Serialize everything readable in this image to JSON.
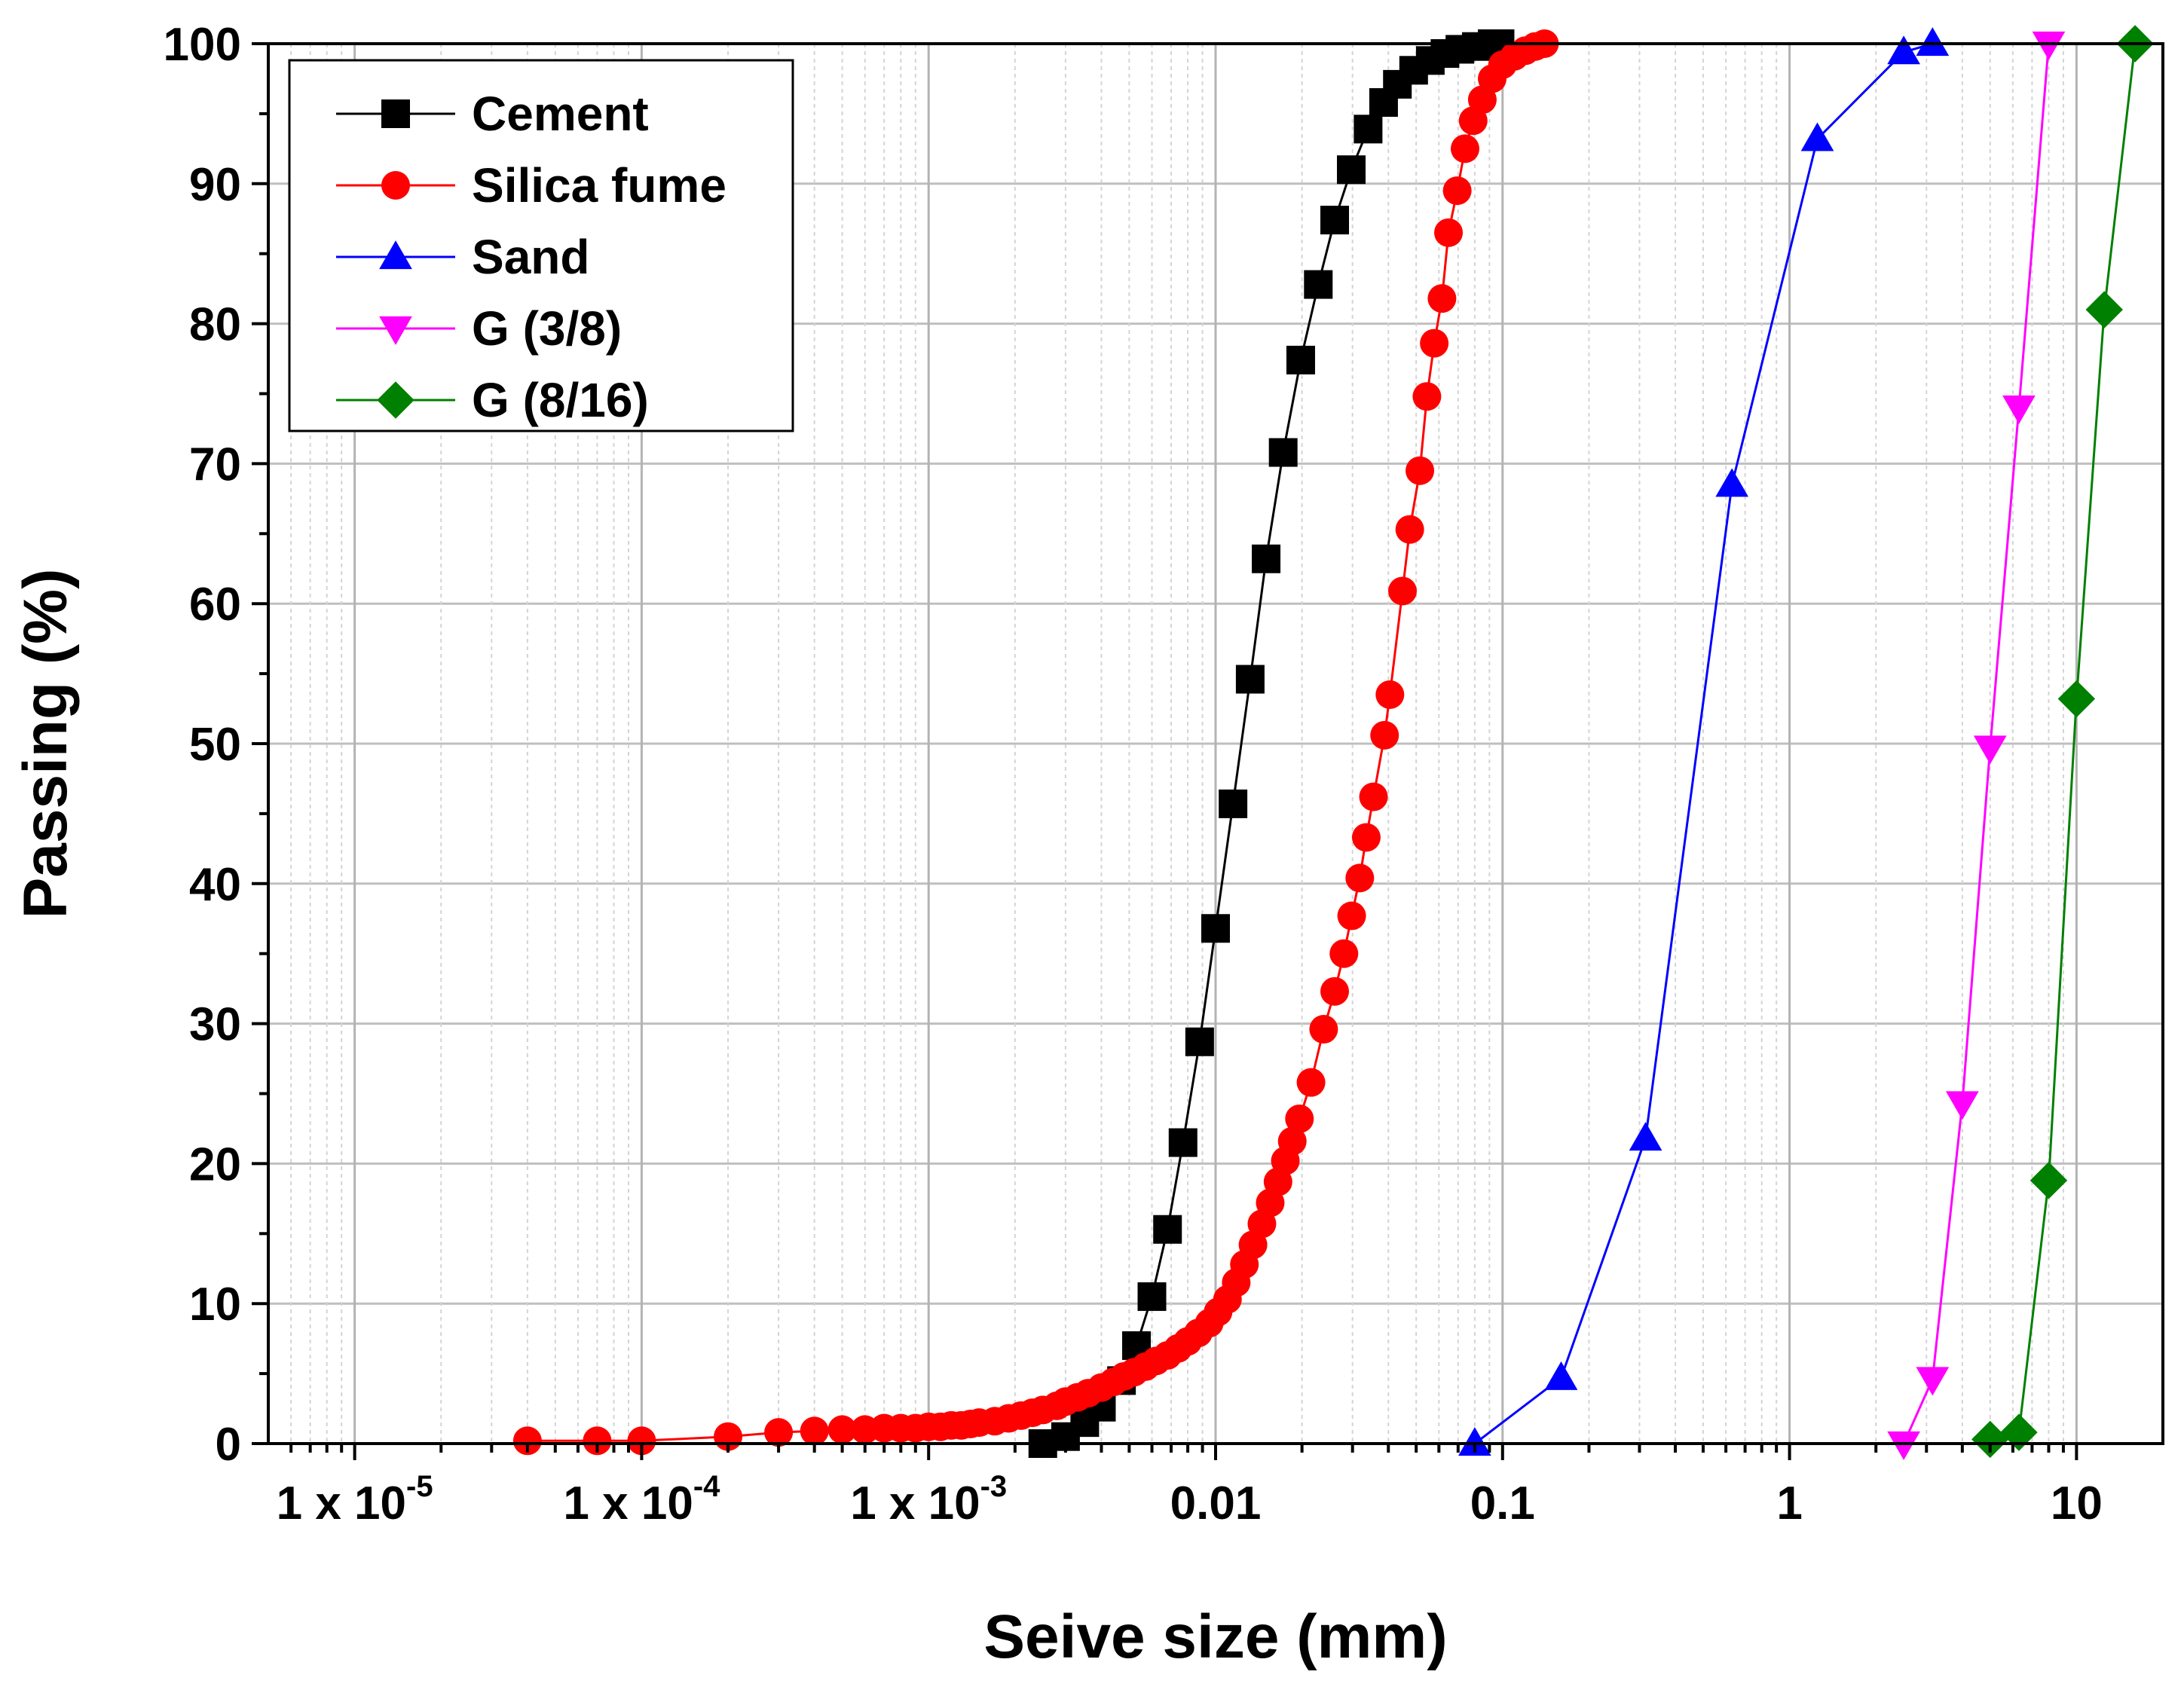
{
  "chart_data": {
    "type": "line",
    "title": "",
    "xlabel": "Seive size (mm)",
    "ylabel": "Passing (%)",
    "x_scale": "log",
    "xlim": [
      5e-06,
      20
    ],
    "ylim": [
      0,
      100
    ],
    "grid": true,
    "legend_position": "top-left",
    "x_ticks": [
      {
        "value": 1e-05,
        "base": "1 x 10",
        "exp": "-5"
      },
      {
        "value": 0.0001,
        "base": "1 x 10",
        "exp": "-4"
      },
      {
        "value": 0.001,
        "base": "1 x 10",
        "exp": "-3"
      },
      {
        "value": 0.01,
        "base": "0.01",
        "exp": ""
      },
      {
        "value": 0.1,
        "base": "0.1",
        "exp": ""
      },
      {
        "value": 1,
        "base": "1",
        "exp": ""
      },
      {
        "value": 10,
        "base": "10",
        "exp": ""
      }
    ],
    "y_ticks": [
      {
        "value": 0,
        "label": "0"
      },
      {
        "value": 10,
        "label": "10"
      },
      {
        "value": 20,
        "label": "20"
      },
      {
        "value": 30,
        "label": "30"
      },
      {
        "value": 40,
        "label": "40"
      },
      {
        "value": 50,
        "label": "50"
      },
      {
        "value": 60,
        "label": "60"
      },
      {
        "value": 70,
        "label": "70"
      },
      {
        "value": 80,
        "label": "80"
      },
      {
        "value": 90,
        "label": "90"
      },
      {
        "value": 100,
        "label": "100"
      }
    ],
    "series": [
      {
        "name": "Cement",
        "color": "#000000",
        "marker": "square",
        "points": [
          [
            0.0025,
            0
          ],
          [
            0.003,
            0.5
          ],
          [
            0.0035,
            1.5
          ],
          [
            0.004,
            2.6
          ],
          [
            0.0047,
            4.5
          ],
          [
            0.0053,
            7.0
          ],
          [
            0.006,
            10.5
          ],
          [
            0.0068,
            15.3
          ],
          [
            0.0077,
            21.5
          ],
          [
            0.0088,
            28.7
          ],
          [
            0.01,
            36.8
          ],
          [
            0.0115,
            45.7
          ],
          [
            0.0132,
            54.6
          ],
          [
            0.015,
            63.2
          ],
          [
            0.0172,
            70.8
          ],
          [
            0.0198,
            77.4
          ],
          [
            0.0228,
            82.8
          ],
          [
            0.026,
            87.4
          ],
          [
            0.0297,
            91.0
          ],
          [
            0.034,
            93.9
          ],
          [
            0.0385,
            95.8
          ],
          [
            0.043,
            97.1
          ],
          [
            0.049,
            98.1
          ],
          [
            0.056,
            98.8
          ],
          [
            0.063,
            99.3
          ],
          [
            0.071,
            99.6
          ],
          [
            0.081,
            99.8
          ],
          [
            0.092,
            100
          ],
          [
            0.098,
            100
          ]
        ]
      },
      {
        "name": "Silica fume",
        "color": "#ff0000",
        "marker": "circle",
        "points": [
          [
            4e-05,
            0.2
          ],
          [
            7e-05,
            0.2
          ],
          [
            0.0001,
            0.2
          ],
          [
            0.0002,
            0.5
          ],
          [
            0.0003,
            0.8
          ],
          [
            0.0004,
            0.9
          ],
          [
            0.0005,
            1.0
          ],
          [
            0.0006,
            1.0
          ],
          [
            0.0007,
            1.1
          ],
          [
            0.0008,
            1.1
          ],
          [
            0.0009,
            1.1
          ],
          [
            0.001,
            1.2
          ],
          [
            0.0011,
            1.2
          ],
          [
            0.0012,
            1.3
          ],
          [
            0.0013,
            1.3
          ],
          [
            0.0014,
            1.4
          ],
          [
            0.0015,
            1.5
          ],
          [
            0.0017,
            1.6
          ],
          [
            0.0019,
            1.8
          ],
          [
            0.0021,
            2.0
          ],
          [
            0.0023,
            2.2
          ],
          [
            0.0025,
            2.4
          ],
          [
            0.0028,
            2.7
          ],
          [
            0.003,
            3.0
          ],
          [
            0.0033,
            3.3
          ],
          [
            0.0036,
            3.6
          ],
          [
            0.004,
            4.0
          ],
          [
            0.0044,
            4.4
          ],
          [
            0.0048,
            4.8
          ],
          [
            0.0052,
            5.1
          ],
          [
            0.0057,
            5.5
          ],
          [
            0.0062,
            5.9
          ],
          [
            0.0068,
            6.3
          ],
          [
            0.0074,
            6.8
          ],
          [
            0.008,
            7.3
          ],
          [
            0.0087,
            7.9
          ],
          [
            0.0095,
            8.6
          ],
          [
            0.0102,
            9.4
          ],
          [
            0.011,
            10.3
          ],
          [
            0.0118,
            11.5
          ],
          [
            0.0126,
            12.8
          ],
          [
            0.0135,
            14.2
          ],
          [
            0.0145,
            15.7
          ],
          [
            0.0155,
            17.2
          ],
          [
            0.0165,
            18.7
          ],
          [
            0.0175,
            20.2
          ],
          [
            0.0185,
            21.6
          ],
          [
            0.0196,
            23.2
          ],
          [
            0.0215,
            25.8
          ],
          [
            0.0238,
            29.6
          ],
          [
            0.026,
            32.3
          ],
          [
            0.028,
            35.0
          ],
          [
            0.0298,
            37.7
          ],
          [
            0.0318,
            40.4
          ],
          [
            0.0335,
            43.3
          ],
          [
            0.0355,
            46.2
          ],
          [
            0.0388,
            50.6
          ],
          [
            0.0405,
            53.5
          ],
          [
            0.0448,
            60.9
          ],
          [
            0.0475,
            65.3
          ],
          [
            0.0515,
            69.5
          ],
          [
            0.0545,
            74.8
          ],
          [
            0.0578,
            78.6
          ],
          [
            0.0615,
            81.8
          ],
          [
            0.0648,
            86.5
          ],
          [
            0.0695,
            89.5
          ],
          [
            0.074,
            92.5
          ],
          [
            0.079,
            94.5
          ],
          [
            0.085,
            96.0
          ],
          [
            0.092,
            97.5
          ],
          [
            0.1,
            98.5
          ],
          [
            0.11,
            99.1
          ],
          [
            0.12,
            99.5
          ],
          [
            0.13,
            99.8
          ],
          [
            0.14,
            100
          ]
        ]
      },
      {
        "name": "Sand",
        "color": "#0000ff",
        "marker": "triangle-up",
        "points": [
          [
            0.08,
            0
          ],
          [
            0.16,
            4.7
          ],
          [
            0.315,
            21.8
          ],
          [
            0.63,
            68.5
          ],
          [
            1.25,
            93.2
          ],
          [
            2.5,
            99.4
          ],
          [
            3.15,
            100
          ]
        ]
      },
      {
        "name": "G (3/8)",
        "color": "#ff00ff",
        "marker": "triangle-down",
        "points": [
          [
            2.5,
            0
          ],
          [
            3.15,
            4.6
          ],
          [
            4,
            24.3
          ],
          [
            5,
            49.7
          ],
          [
            6.3,
            74.0
          ],
          [
            8,
            100
          ]
        ]
      },
      {
        "name": "G (8/16)",
        "color": "#008000",
        "marker": "diamond",
        "points": [
          [
            5,
            0.3
          ],
          [
            6.3,
            0.8
          ],
          [
            8,
            18.8
          ],
          [
            10,
            53.2
          ],
          [
            12.5,
            81.0
          ],
          [
            16,
            100
          ]
        ]
      }
    ]
  }
}
